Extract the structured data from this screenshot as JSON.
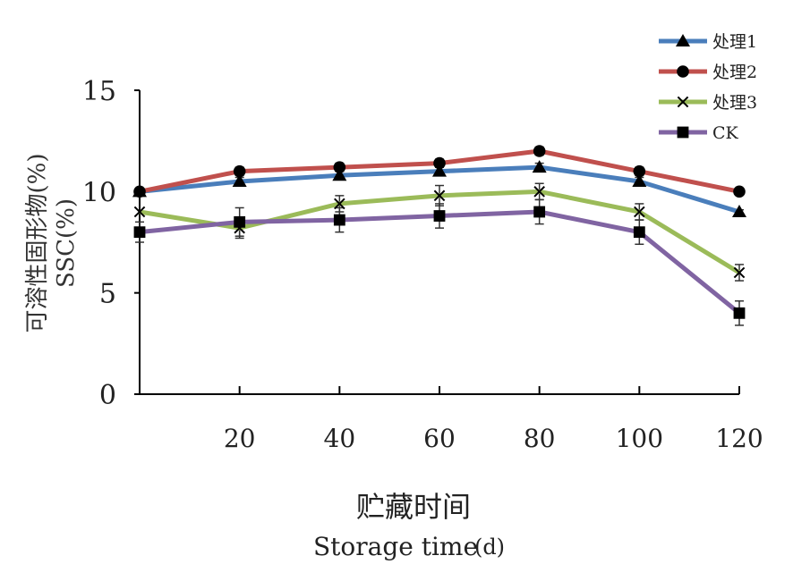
{
  "chart_data": {
    "type": "line",
    "x": [
      0,
      20,
      40,
      60,
      80,
      100,
      120
    ],
    "x_tick_labels": [
      "20",
      "40",
      "60",
      "80",
      "100",
      "120"
    ],
    "x_tick_values": [
      20,
      40,
      60,
      80,
      100,
      120
    ],
    "y_ticks": [
      0,
      5,
      10,
      15
    ],
    "ylim": [
      0,
      15
    ],
    "xlim": [
      0,
      120
    ],
    "ylabel_line1": "可溶性固形物(%)",
    "ylabel_line2": "SSC(%)",
    "xlabel_zh": "贮藏时间",
    "xlabel_en": "Storage time",
    "xlabel_unit": "(d)",
    "legend_position": "top-right",
    "grid": false,
    "series": [
      {
        "name": "处理1",
        "color": "#4a7ebb",
        "marker": "triangle",
        "values": [
          10.0,
          10.5,
          10.8,
          11.0,
          11.2,
          10.5,
          9.0
        ],
        "errors": [
          0,
          0.2,
          0.2,
          0.2,
          0.2,
          0.2,
          0.1
        ]
      },
      {
        "name": "处理2",
        "color": "#c0504d",
        "marker": "circle",
        "values": [
          10.0,
          11.0,
          11.2,
          11.4,
          12.0,
          11.0,
          10.0
        ],
        "errors": [
          0,
          0.2,
          0.2,
          0.2,
          0.2,
          0.2,
          0.1
        ]
      },
      {
        "name": "处理3",
        "color": "#9bbb59",
        "marker": "x",
        "values": [
          9.0,
          8.2,
          9.4,
          9.8,
          10.0,
          9.0,
          6.0
        ],
        "errors": [
          0,
          0.5,
          0.4,
          0.5,
          0.4,
          0.4,
          0.4
        ]
      },
      {
        "name": "CK",
        "color": "#8064a2",
        "marker": "square",
        "values": [
          8.0,
          8.5,
          8.6,
          8.8,
          9.0,
          8.0,
          4.0
        ],
        "errors": [
          0.5,
          0.7,
          0.6,
          0.6,
          0.6,
          0.6,
          0.6
        ]
      }
    ]
  }
}
